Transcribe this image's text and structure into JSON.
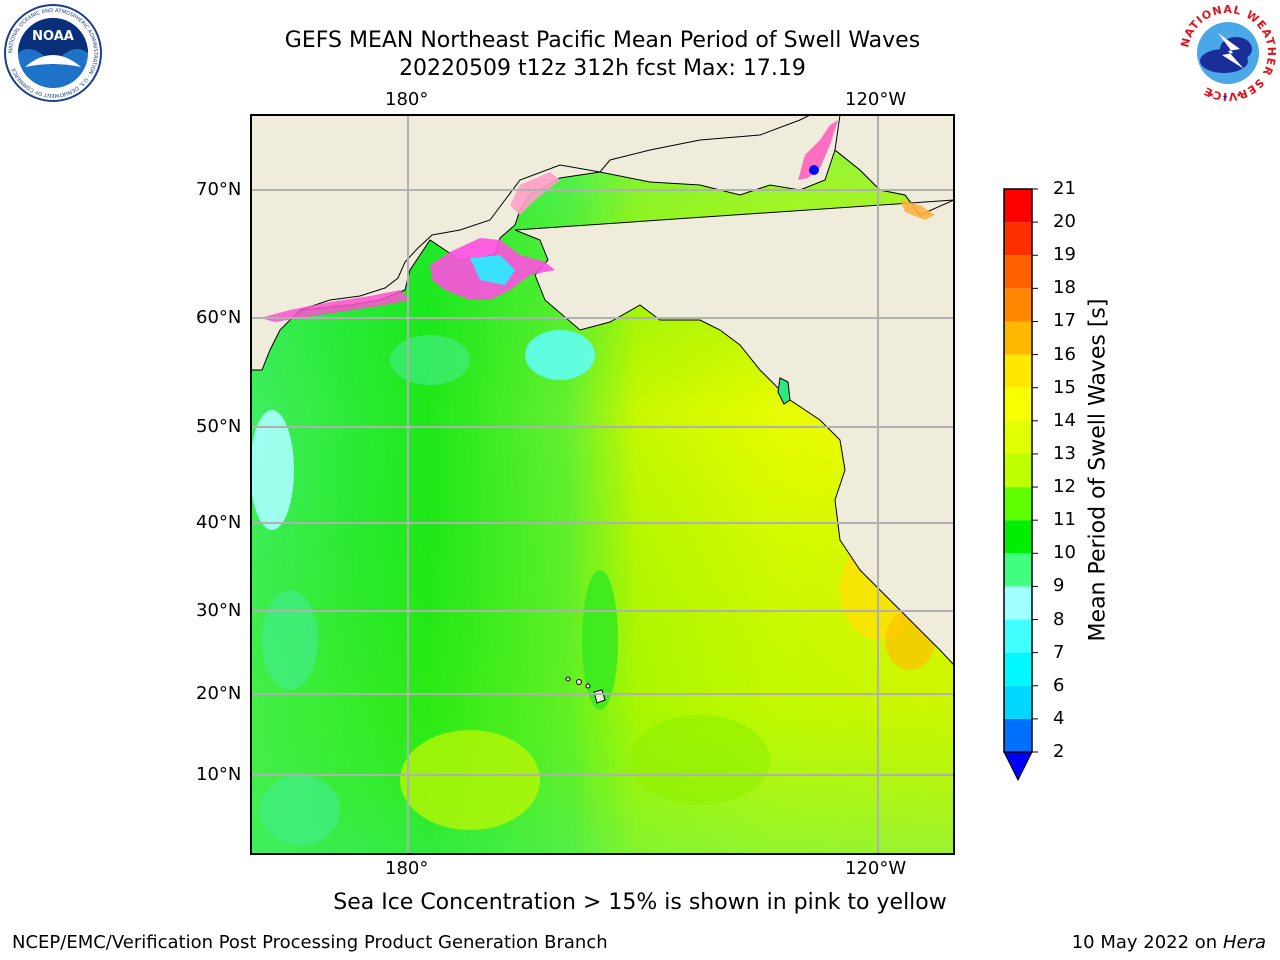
{
  "title_line1": "GEFS MEAN Northeast Pacific Mean Period of Swell Waves",
  "title_line2": "20220509 t12z 312h fcst   Max: 17.19",
  "map": {
    "lon_labels": [
      "180°",
      "120°W"
    ],
    "lat_labels": [
      "70°N",
      "60°N",
      "50°N",
      "40°N",
      "30°N",
      "20°N",
      "10°N"
    ],
    "land_color": "#efecdc",
    "grid_color": "#b0b0b0"
  },
  "colorbar": {
    "title": "Mean Period of Swell Waves [s]",
    "levels": [
      "2",
      "4",
      "6",
      "7",
      "8",
      "9",
      "10",
      "11",
      "12",
      "13",
      "14",
      "15",
      "16",
      "17",
      "18",
      "19",
      "20",
      "21"
    ],
    "colors": [
      "#0070ff",
      "#00d8ff",
      "#00f8ff",
      "#40ffff",
      "#a0ffff",
      "#40ff80",
      "#00ee00",
      "#60ff00",
      "#c0ff00",
      "#e0ff00",
      "#f8ff00",
      "#ffe800",
      "#ffb800",
      "#ff8800",
      "#ff6000",
      "#ff3000",
      "#ff0000"
    ],
    "extend_color": "#0000ff"
  },
  "caption": "Sea Ice Concentration > 15% is shown in pink to yellow",
  "footer_left": "NCEP/EMC/Verification Post Processing Product Generation Branch",
  "footer_right_date": "10 May 2022 on",
  "footer_right_machine": "Hera",
  "logos": {
    "noaa": "NOAA",
    "noaa_ring": "NATIONAL OCEANIC AND ATMOSPHERIC ADMINISTRATION · U.S. DEPARTMENT OF COMMERCE",
    "nws": "NATIONAL WEATHER SERVICE"
  }
}
